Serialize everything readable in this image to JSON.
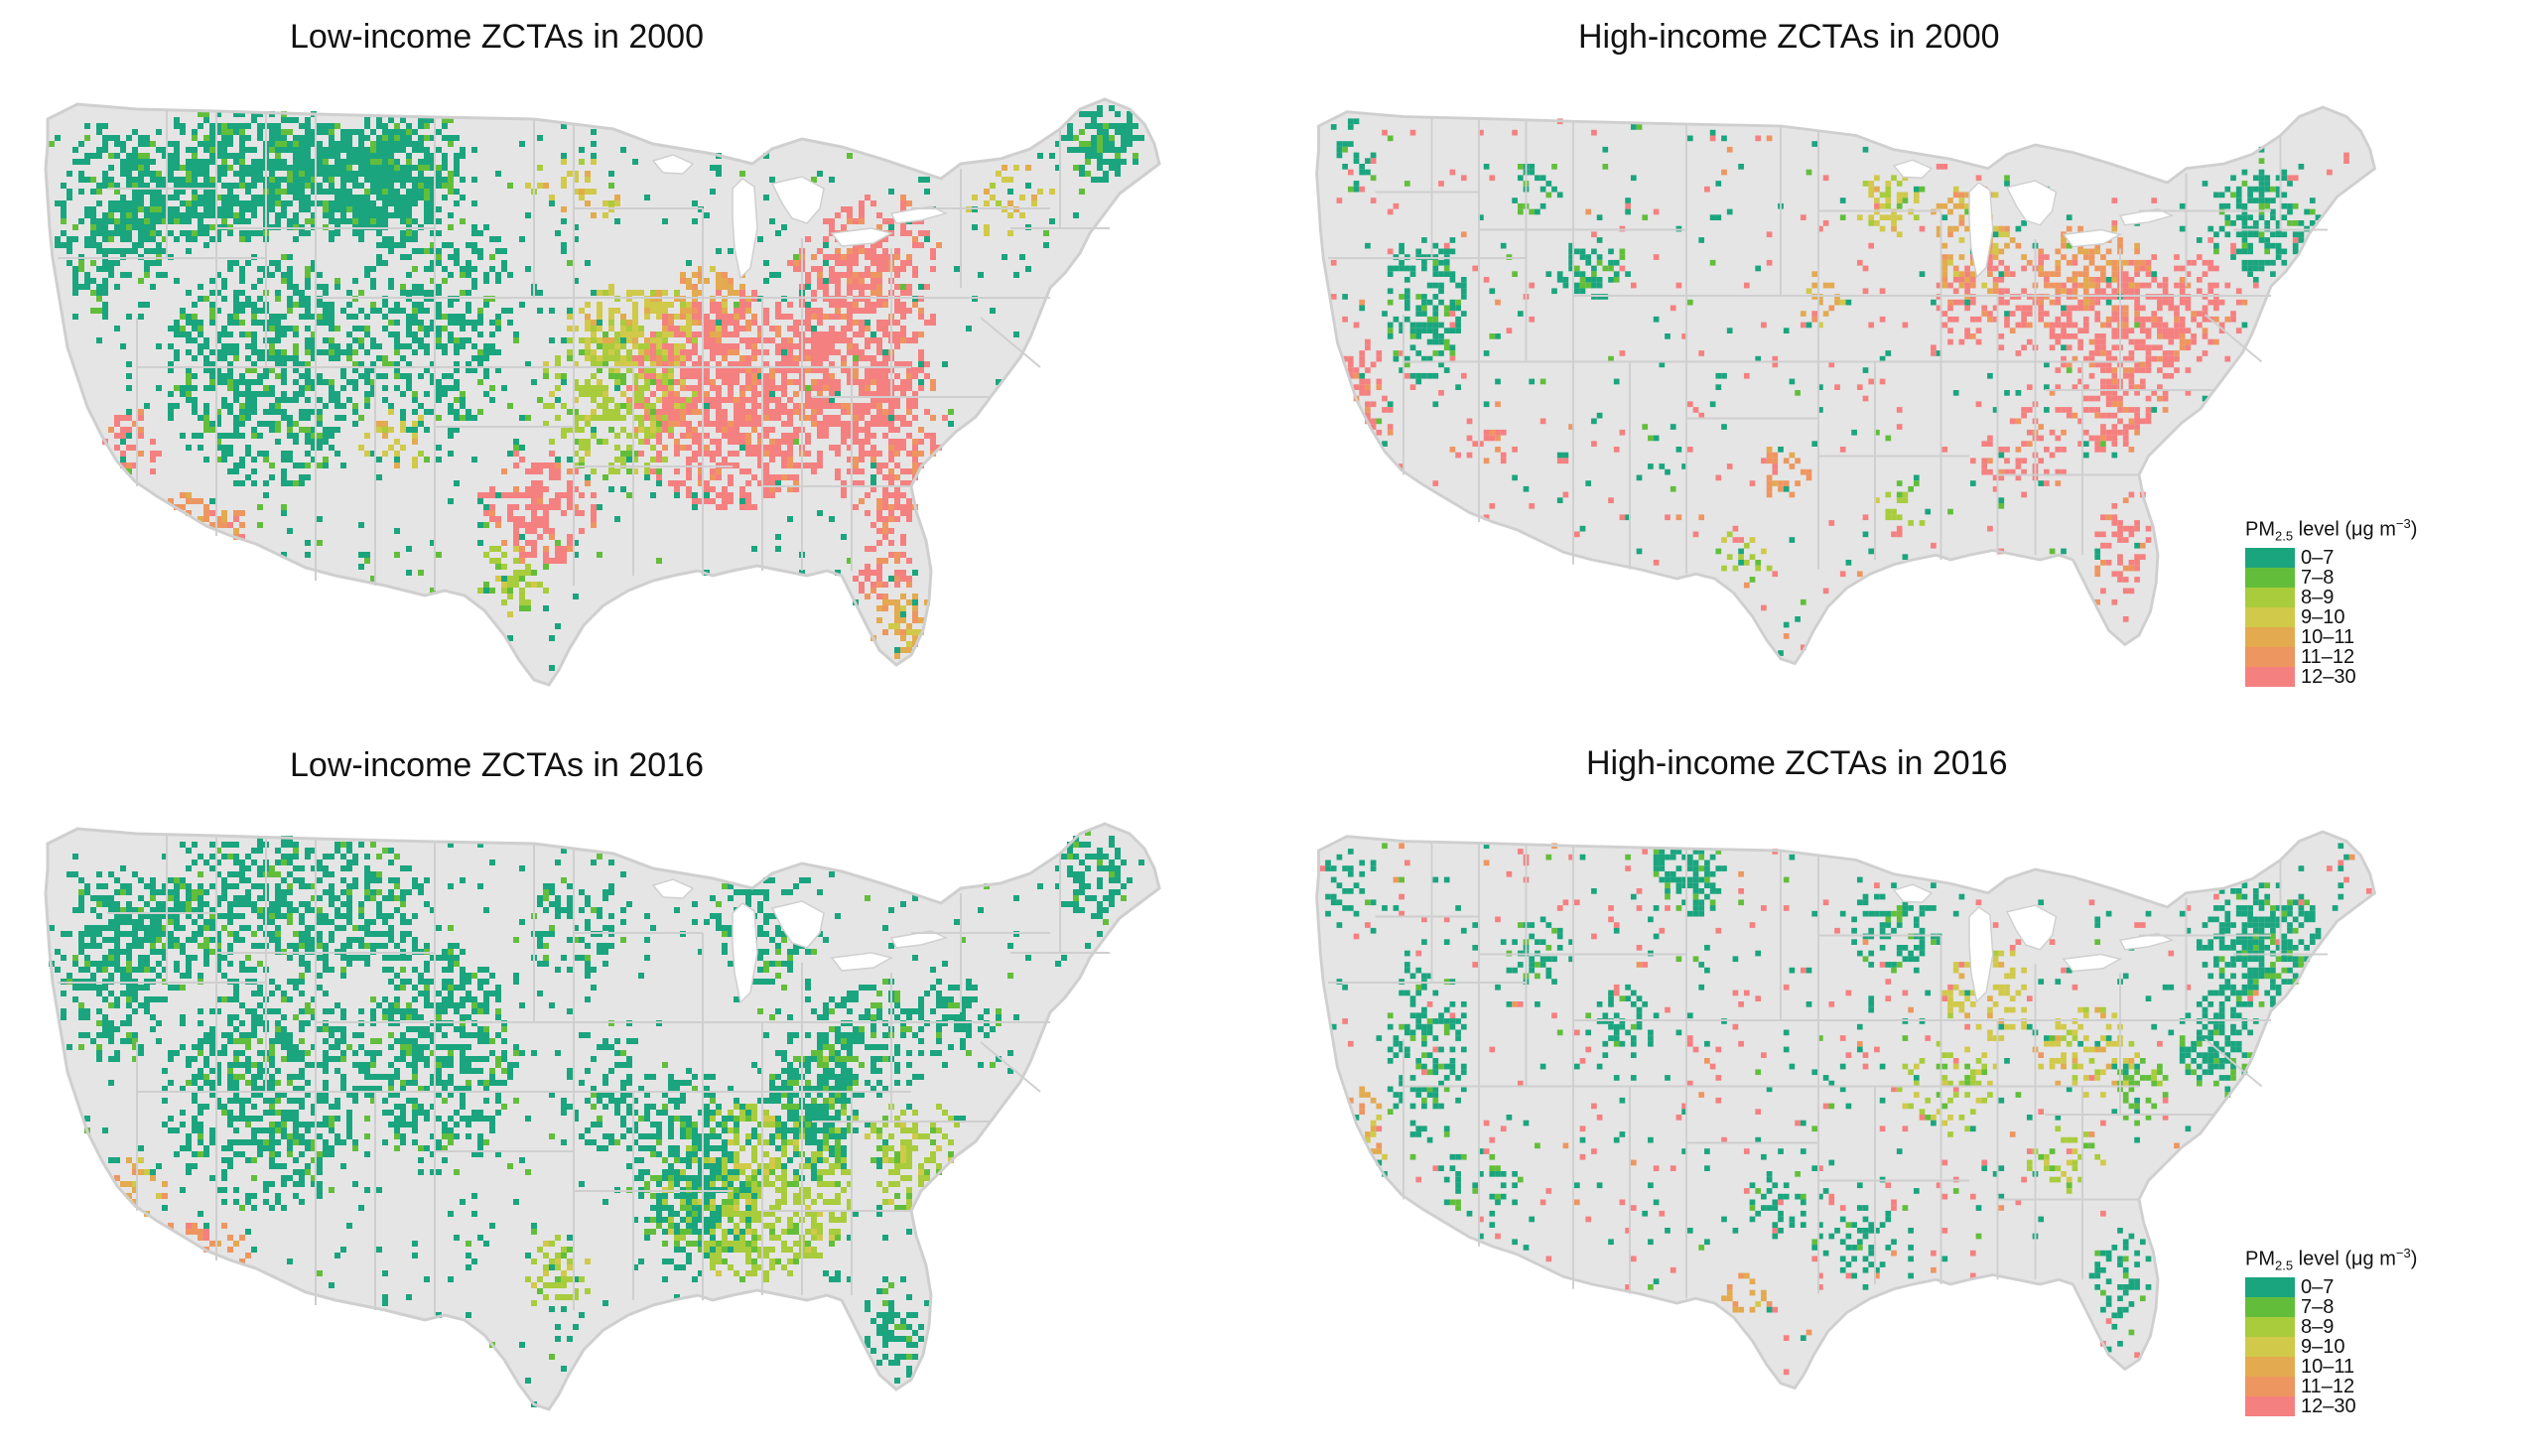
{
  "panels": [
    {
      "id": "p1",
      "title": "Low-income ZCTAs in 2000",
      "pattern": "low2000"
    },
    {
      "id": "p2",
      "title": "High-income ZCTAs in 2000",
      "pattern": "high2000"
    },
    {
      "id": "p3",
      "title": "Low-income ZCTAs in 2016",
      "pattern": "low2016"
    },
    {
      "id": "p4",
      "title": "High-income ZCTAs in 2016",
      "pattern": "high2016"
    }
  ],
  "legend": {
    "title_prefix": "PM",
    "title_sub": "2.5",
    "title_mid": " level (μg m",
    "title_sup": "−3",
    "title_suffix": ")",
    "items": [
      {
        "label": "0–7",
        "color": "#1aa57e"
      },
      {
        "label": "7–8",
        "color": "#62be3a"
      },
      {
        "label": "8–9",
        "color": "#a8cc3c"
      },
      {
        "label": "9–10",
        "color": "#d1c94a"
      },
      {
        "label": "10–11",
        "color": "#e3aa4f"
      },
      {
        "label": "11–12",
        "color": "#ee9660"
      },
      {
        "label": "12–30",
        "color": "#f58080"
      }
    ]
  },
  "colors": {
    "land": "#e5e5e5",
    "state_border": "#cfcfcf"
  }
}
